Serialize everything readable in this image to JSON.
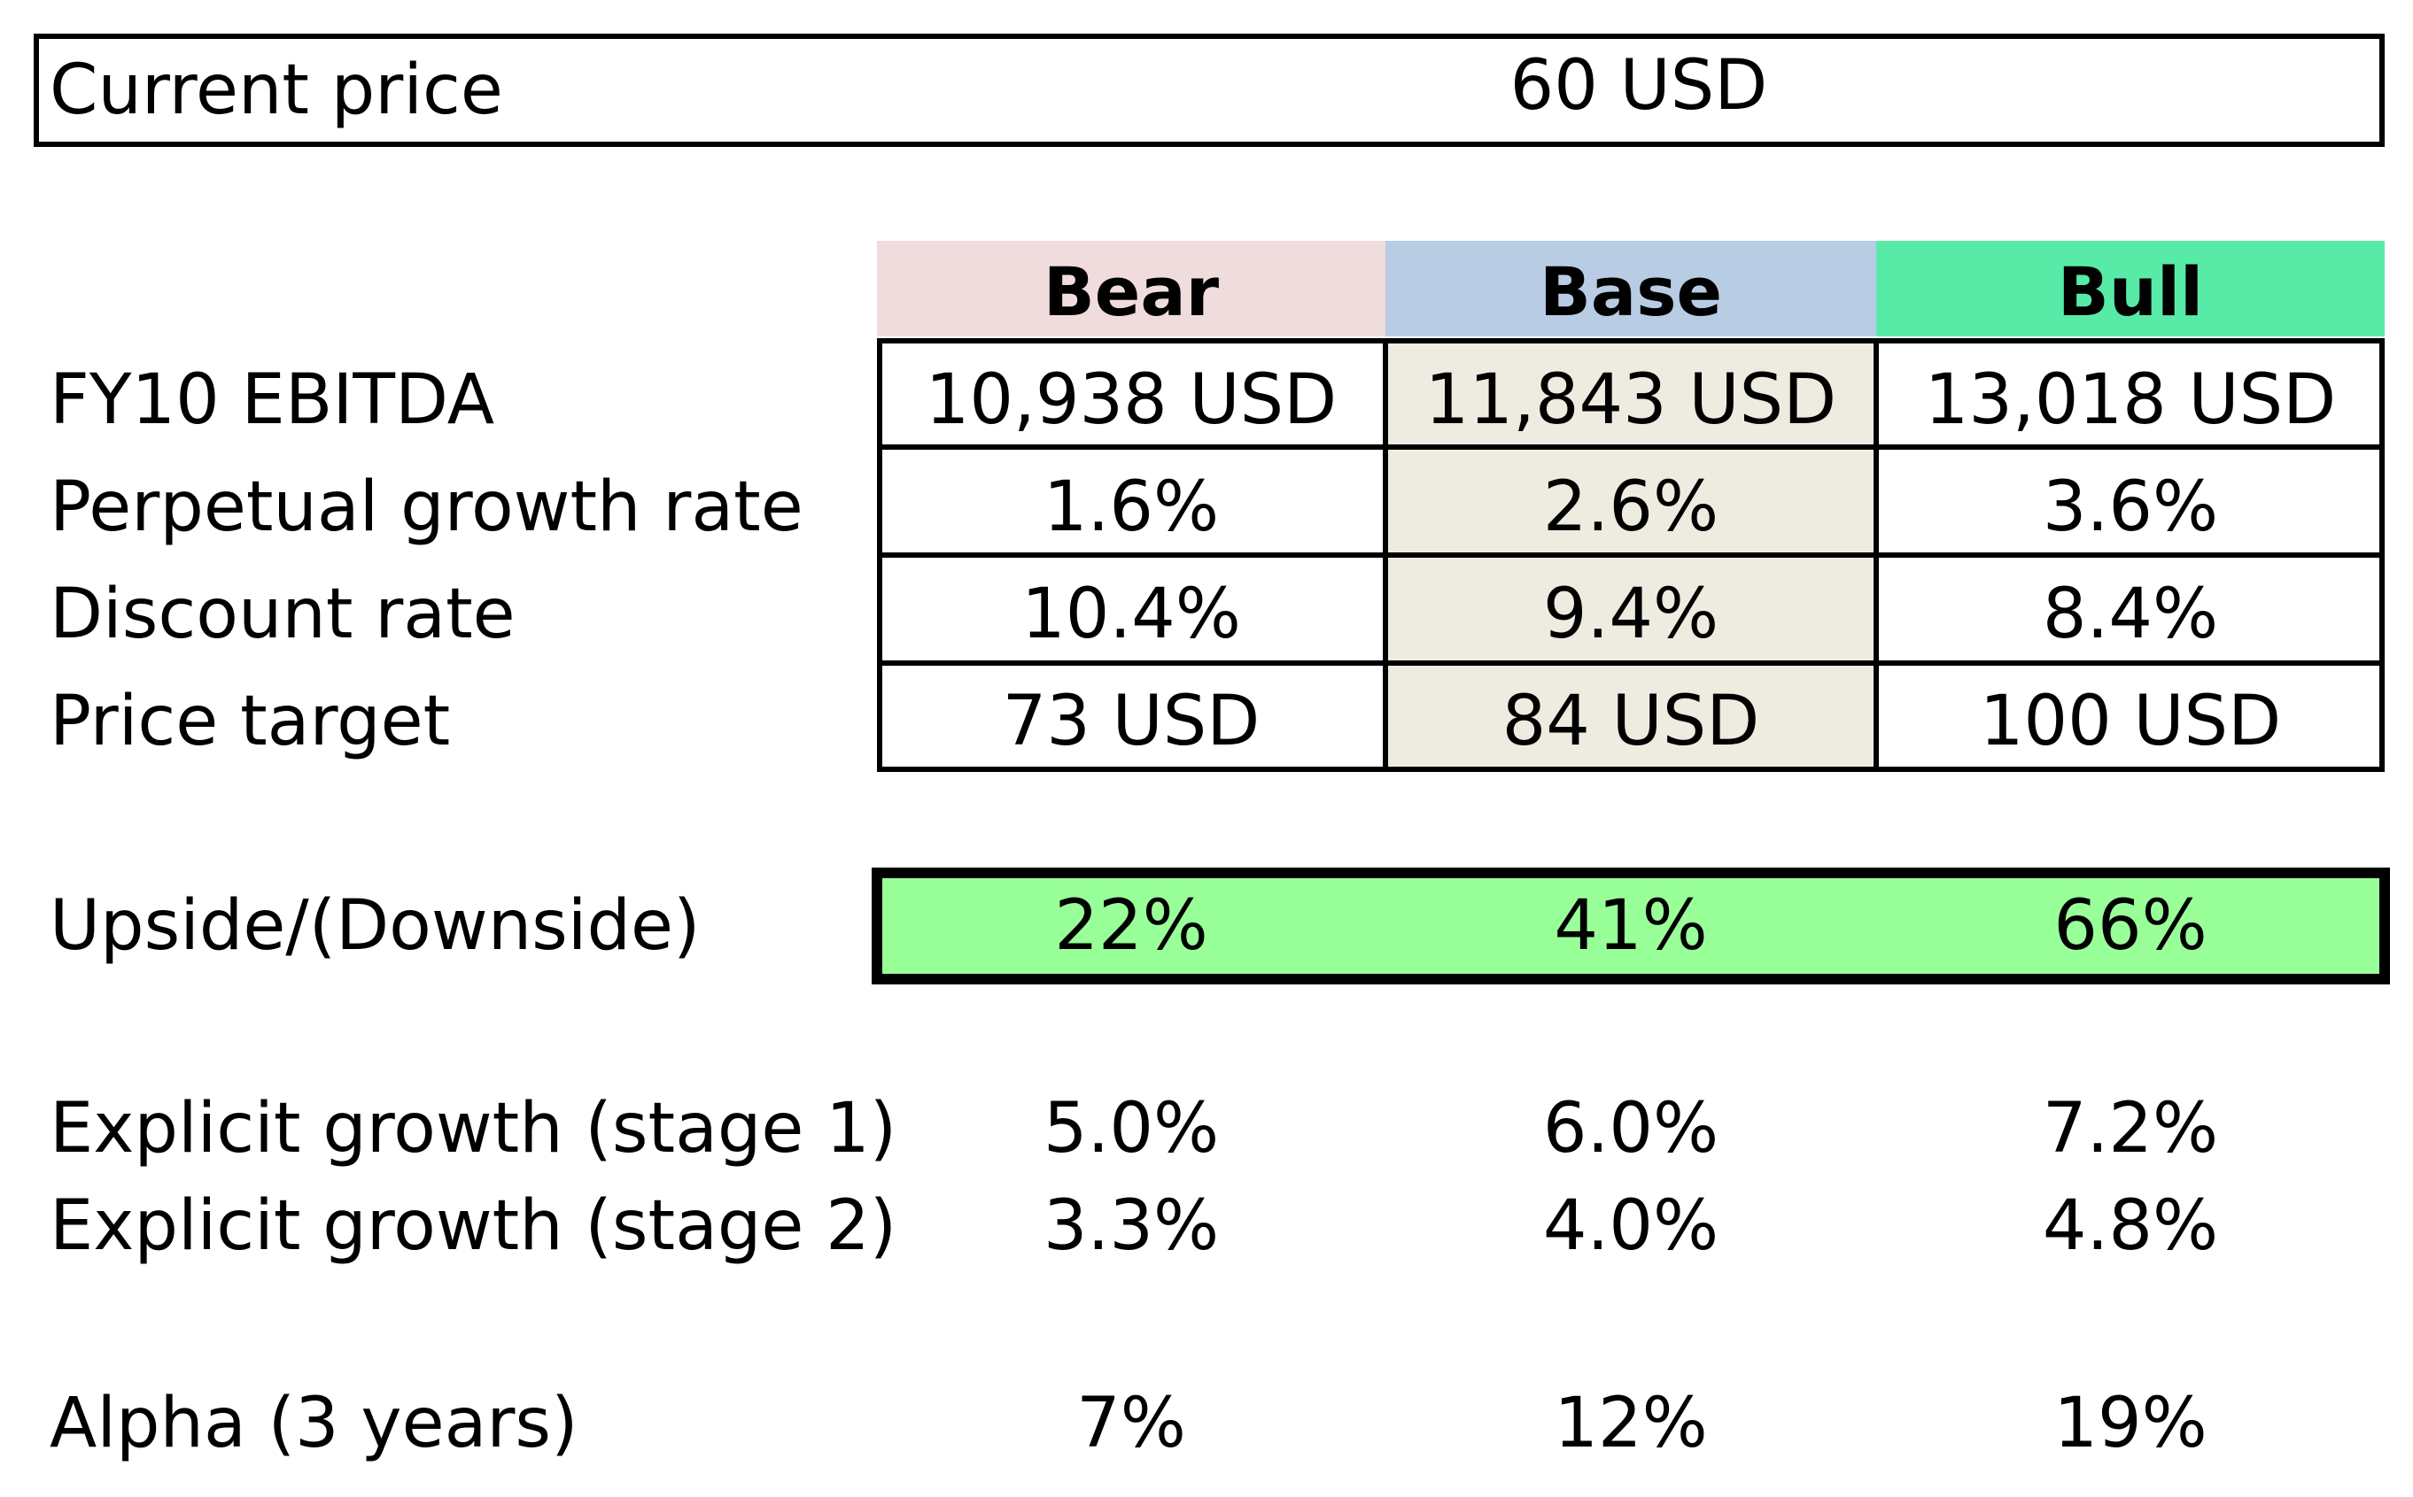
{
  "current_price": {
    "label": "Current price",
    "value": "60 USD"
  },
  "scenarios": [
    {
      "name": "Bear",
      "header_color": "#f0dcdc",
      "column_fill": "#ffffff"
    },
    {
      "name": "Base",
      "header_color": "#b8cce4",
      "column_fill": "#eeece1"
    },
    {
      "name": "Bull",
      "header_color": "#58eba8",
      "column_fill": "#ffffff"
    }
  ],
  "table_rows": [
    {
      "label": "FY10 EBITDA",
      "values": [
        "10,938 USD",
        "11,843 USD",
        "13,018 USD"
      ]
    },
    {
      "label": "Perpetual growth rate",
      "values": [
        "1.6%",
        "2.6%",
        "3.6%"
      ]
    },
    {
      "label": "Discount rate",
      "values": [
        "10.4%",
        "9.4%",
        "8.4%"
      ]
    },
    {
      "label": "Price target",
      "values": [
        "73 USD",
        "84 USD",
        "100 USD"
      ]
    }
  ],
  "upside": {
    "label": "Upside/(Downside)",
    "values": [
      "22%",
      "41%",
      "66%"
    ],
    "fill": "#99ff99"
  },
  "growth_rows": [
    {
      "label": "Explicit growth (stage 1)",
      "values": [
        "5.0%",
        "6.0%",
        "7.2%"
      ]
    },
    {
      "label": "Explicit growth (stage 2)",
      "values": [
        "3.3%",
        "4.0%",
        "4.8%"
      ]
    }
  ],
  "alpha": {
    "label": "Alpha (3 years)",
    "values": [
      "7%",
      "12%",
      "19%"
    ]
  }
}
